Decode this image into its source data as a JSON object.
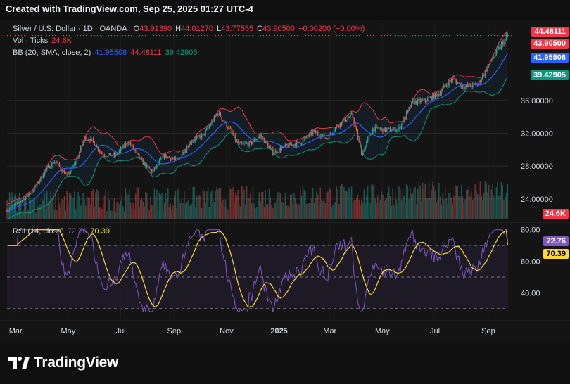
{
  "header": {
    "title": "Created with TradingView.com, Sep 25, 2025 01:27 UTC-4"
  },
  "legend": {
    "symbol": "Silver / U.S. Dollar · 1D · OANDA",
    "o_label": "O",
    "o_value": "43.91390",
    "h_label": "H",
    "h_value": "44.01270",
    "l_label": "L",
    "l_value": "43.77555",
    "c_label": "C",
    "c_value": "43.90500",
    "change": "−0.00200 (−0.00%)",
    "vol_label": "Vol · Ticks",
    "vol_value": "24.6K",
    "bb_label": "BB (20, SMA, close, 2)",
    "bb_basis": "41.95508",
    "bb_upper": "44.48111",
    "bb_lower": "39.42905",
    "rsi_label": "RSI (14, close)",
    "rsi_value": "72.76",
    "rsi_ma": "70.39"
  },
  "badges": {
    "upper": "44.48111",
    "close": "43.90500",
    "basis": "41.95508",
    "lower": "39.42905",
    "volume": "24.6K",
    "rsi": "72.76",
    "rsi_ma": "70.39"
  },
  "colors": {
    "up": "#26a69a",
    "down": "#ef5350",
    "bb_basis": "#2962ff",
    "bb_upper": "#f23645",
    "bb_lower": "#089981",
    "rsi": "#7e57c2",
    "rsi_ma": "#fdd835",
    "bg": "#141414",
    "grid": "#2a2a2a"
  },
  "footer": {
    "brand": "TradingView"
  },
  "chart_data": [
    {
      "type": "candlestick",
      "title": "Silver / U.S. Dollar · 1D · OANDA",
      "price_axis_ticks": [
        "24.00000",
        "28.00000",
        "32.00000",
        "36.00000"
      ],
      "ylim": [
        21.5,
        45.5
      ],
      "x_ticks": [
        "Mar",
        "May",
        "Jul",
        "Sep",
        "Nov",
        "2025",
        "Mar",
        "May",
        "Jul",
        "Sep"
      ],
      "close_path": [
        [
          "2024-02-20",
          22.6
        ],
        [
          "2024-03-05",
          23.6
        ],
        [
          "2024-03-20",
          24.9
        ],
        [
          "2024-04-05",
          27.5
        ],
        [
          "2024-04-15",
          28.6
        ],
        [
          "2024-04-30",
          26.8
        ],
        [
          "2024-05-10",
          28.5
        ],
        [
          "2024-05-20",
          31.5
        ],
        [
          "2024-05-30",
          31.0
        ],
        [
          "2024-06-10",
          29.4
        ],
        [
          "2024-06-25",
          29.3
        ],
        [
          "2024-07-10",
          31.0
        ],
        [
          "2024-07-25",
          28.6
        ],
        [
          "2024-08-07",
          27.3
        ],
        [
          "2024-08-20",
          29.3
        ],
        [
          "2024-09-05",
          28.7
        ],
        [
          "2024-09-20",
          31.0
        ],
        [
          "2024-10-05",
          31.8
        ],
        [
          "2024-10-22",
          34.5
        ],
        [
          "2024-11-05",
          32.4
        ],
        [
          "2024-11-15",
          30.6
        ],
        [
          "2024-11-30",
          30.8
        ],
        [
          "2024-12-10",
          31.8
        ],
        [
          "2024-12-25",
          29.6
        ],
        [
          "2025-01-10",
          30.5
        ],
        [
          "2025-01-25",
          30.8
        ],
        [
          "2025-02-10",
          32.2
        ],
        [
          "2025-02-25",
          31.4
        ],
        [
          "2025-03-10",
          33.0
        ],
        [
          "2025-03-27",
          34.2
        ],
        [
          "2025-04-07",
          29.5
        ],
        [
          "2025-04-20",
          32.6
        ],
        [
          "2025-05-05",
          32.4
        ],
        [
          "2025-05-20",
          32.5
        ],
        [
          "2025-06-05",
          35.8
        ],
        [
          "2025-06-20",
          36.0
        ],
        [
          "2025-07-05",
          36.8
        ],
        [
          "2025-07-20",
          38.6
        ],
        [
          "2025-08-05",
          37.6
        ],
        [
          "2025-08-20",
          38.0
        ],
        [
          "2025-09-05",
          41.0
        ],
        [
          "2025-09-24",
          43.9
        ]
      ]
    },
    {
      "type": "bar",
      "title": "Vol · Ticks",
      "last_value": "24.6K"
    },
    {
      "type": "line",
      "title": "RSI (14, close)",
      "y_ticks": [
        "40.00",
        "60.00",
        "80.00"
      ],
      "ylim": [
        25,
        83
      ],
      "bands": [
        30,
        50,
        70
      ],
      "series": [
        {
          "name": "RSI",
          "last": 72.76
        },
        {
          "name": "MA",
          "last": 70.39
        }
      ]
    }
  ]
}
